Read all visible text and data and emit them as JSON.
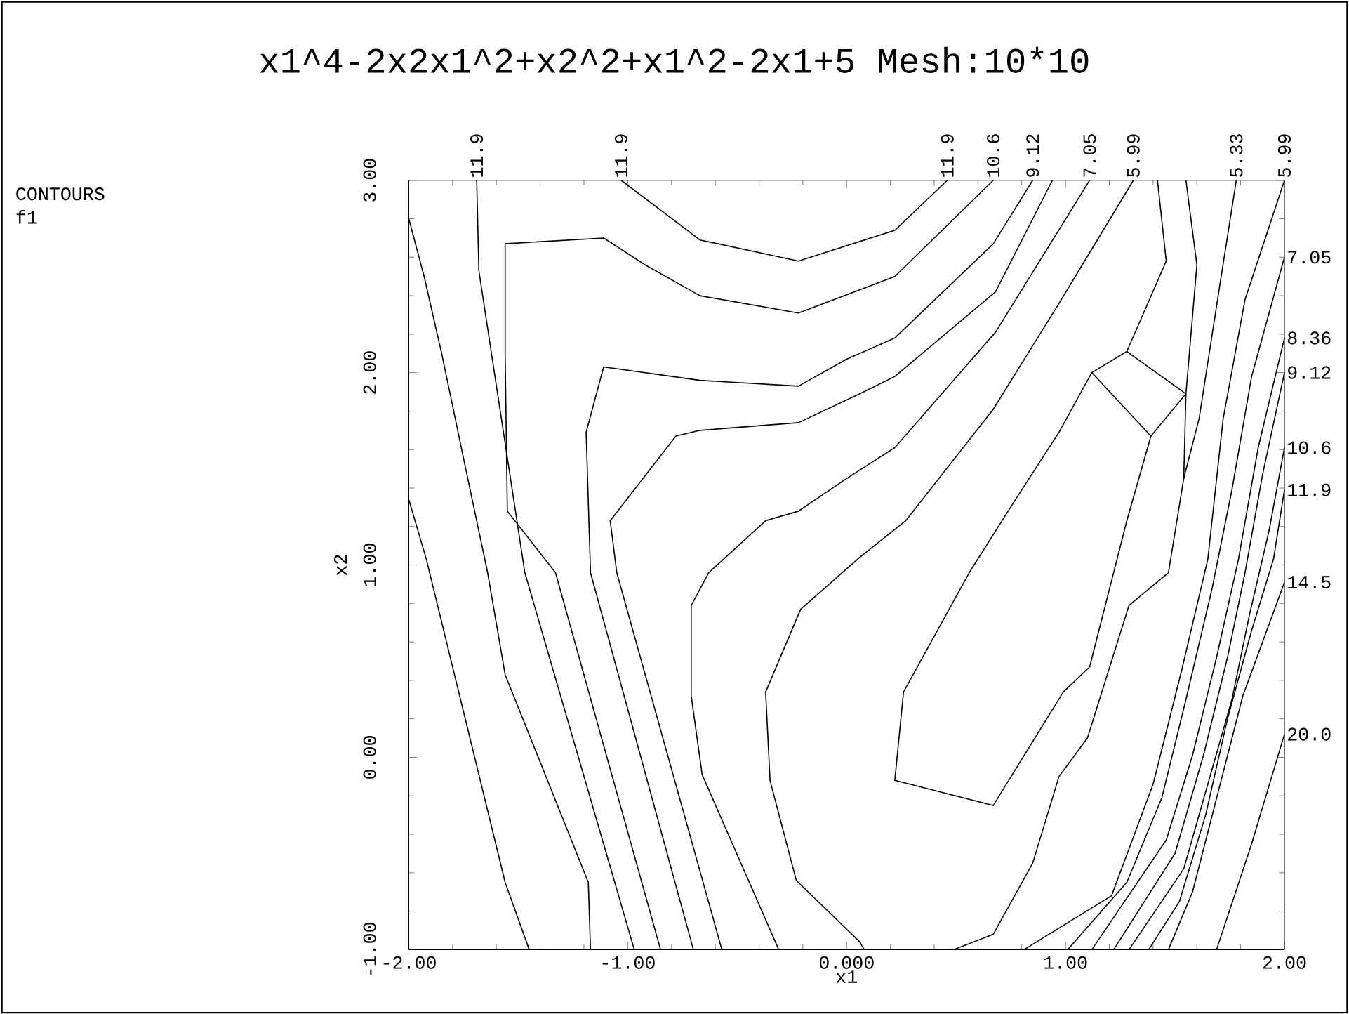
{
  "chart_data": {
    "type": "line",
    "title": "x1^4-2x2x1^2+x2^2+x1^2-2x1+5 Mesh:10*10",
    "xlabel": "x1",
    "ylabel": "x2",
    "color": "#000000",
    "xlim": [
      -2,
      2
    ],
    "ylim": [
      -1,
      3
    ],
    "xticks": [
      {
        "value": -2,
        "label": "-2.00"
      },
      {
        "value": -1,
        "label": "-1.00"
      },
      {
        "value": 0,
        "label": "0.000"
      },
      {
        "value": 1,
        "label": "1.00"
      },
      {
        "value": 2,
        "label": "2.00"
      }
    ],
    "yticks": [
      {
        "value": -1,
        "label": "-1.00"
      },
      {
        "value": 0,
        "label": "0.00"
      },
      {
        "value": 1,
        "label": "1.00"
      },
      {
        "value": 2,
        "label": "2.00"
      },
      {
        "value": 3,
        "label": "3.00"
      }
    ],
    "series": [
      {
        "x": [
          -2,
          -1.92,
          -1.56,
          -1.45
        ],
        "values": [
          1.34,
          1.03,
          -0.65,
          -1
        ]
      },
      {
        "x": [
          -2,
          -1.93,
          -1.85,
          -1.74,
          -1.64,
          -1.56,
          -1.18,
          -1.17
        ],
        "values": [
          2.8,
          2.5,
          2.1,
          1.5,
          0.96,
          0.43,
          -0.65,
          -1
        ]
      },
      {
        "x": [
          -1.69,
          -1.68,
          -1.47,
          -0.97
        ],
        "values": [
          3,
          2.53,
          0.96,
          -1
        ]
      },
      {
        "x": [
          -1.03,
          -0.67,
          -0.22,
          0.22,
          0.46
        ],
        "values": [
          3,
          2.69,
          2.58,
          2.74,
          3
        ]
      },
      {
        "x": [
          0.67,
          0.22,
          -0.22,
          -0.67,
          -0.92,
          -1.11,
          -1.56,
          -1.56,
          -1.55,
          -1.33,
          -0.85
        ],
        "values": [
          3,
          2.5,
          2.31,
          2.4,
          2.56,
          2.7,
          2.67,
          2.1,
          1.28,
          0.96,
          -1
        ]
      },
      {
        "x": [
          0.85,
          0.67,
          0.22,
          0.0,
          -0.22,
          -0.67,
          -1.11,
          -1.19,
          -1.17,
          -0.7
        ],
        "values": [
          3,
          2.67,
          2.18,
          2.07,
          1.93,
          1.96,
          2.03,
          1.69,
          0.96,
          -1
        ]
      },
      {
        "x": [
          0.94,
          0.68,
          0.22,
          0.06,
          -0.22,
          -0.67,
          -0.78,
          -1.08,
          -1.05,
          -0.57
        ],
        "values": [
          3,
          2.42,
          1.98,
          1.89,
          1.74,
          1.7,
          1.67,
          1.23,
          0.96,
          -1
        ]
      },
      {
        "x": [
          1.11,
          0.68,
          0.22,
          0.0,
          -0.22,
          -0.37,
          -0.63,
          -0.71,
          -0.71,
          -0.66,
          -0.31
        ],
        "values": [
          3,
          2.21,
          1.61,
          1.45,
          1.28,
          1.23,
          0.96,
          0.79,
          0.32,
          -0.09,
          -1
        ]
      },
      {
        "x": [
          0.08,
          0.06,
          -0.23,
          -0.35,
          -0.37,
          -0.21,
          0.06,
          0.27,
          0.67,
          0.97,
          1.31
        ],
        "values": [
          -1,
          -0.96,
          -0.64,
          -0.12,
          0.34,
          0.77,
          1.04,
          1.23,
          1.81,
          2.36,
          3
        ]
      },
      {
        "x": [
          1.12,
          0.97,
          0.76,
          0.56,
          0.26,
          0.22,
          0.67,
          0.99,
          1.11,
          1.28,
          1.39
        ],
        "values": [
          2.0,
          1.69,
          1.32,
          0.96,
          0.34,
          -0.12,
          -0.25,
          0.34,
          0.47,
          1.23,
          1.67
        ]
      },
      {
        "x": [
          1.42,
          1.46,
          1.28,
          1.55,
          1.39,
          1.12,
          1.28
        ],
        "values": [
          3,
          2.58,
          2.11,
          1.89,
          1.67,
          2.0,
          2.11
        ]
      },
      {
        "x": [
          1.55,
          1.6,
          1.55,
          1.54,
          1.47,
          1.29,
          1.1,
          0.97,
          0.85,
          0.67,
          0.49
        ],
        "values": [
          3,
          2.56,
          1.89,
          1.45,
          0.96,
          0.79,
          0.1,
          -0.1,
          -0.55,
          -0.92,
          -1
        ]
      },
      {
        "x": [
          1.78,
          1.7,
          1.61,
          1.54
        ],
        "values": [
          3,
          2.42,
          1.76,
          1.45
        ]
      },
      {
        "x": [
          2,
          1.82,
          1.72,
          1.65,
          1.53,
          1.4,
          1.21,
          0.81
        ],
        "values": [
          3,
          2.38,
          1.76,
          1.03,
          0.45,
          -0.14,
          -0.72,
          -1
        ]
      },
      {
        "x": [
          2,
          1.85,
          1.76,
          1.67,
          1.55,
          1.44,
          1.28,
          1.01
        ],
        "values": [
          2.6,
          1.98,
          1.39,
          0.88,
          0.3,
          -0.21,
          -0.65,
          -1
        ]
      },
      {
        "x": [
          2,
          1.88,
          1.79,
          1.69,
          1.58,
          1.46,
          1.12
        ],
        "values": [
          2.18,
          1.61,
          1.03,
          0.52,
          0.01,
          -0.43,
          -1
        ]
      },
      {
        "x": [
          2,
          1.9,
          1.82,
          1.74,
          1.63,
          1.5,
          1.22
        ],
        "values": [
          2.0,
          1.47,
          0.96,
          0.52,
          0.01,
          -0.5,
          -1
        ]
      },
      {
        "x": [
          2,
          1.93,
          1.84,
          1.76,
          1.65,
          1.54,
          1.29
        ],
        "values": [
          1.61,
          1.18,
          0.74,
          0.3,
          -0.14,
          -0.58,
          -1
        ]
      },
      {
        "x": [
          2,
          1.95,
          1.85,
          1.74,
          1.64,
          1.52,
          1.38
        ],
        "values": [
          1.39,
          1.03,
          0.66,
          0.2,
          -0.3,
          -0.75,
          -1
        ]
      },
      {
        "x": [
          2,
          1.81,
          1.58,
          1.47
        ],
        "values": [
          0.91,
          0.32,
          -0.7,
          -1
        ]
      },
      {
        "x": [
          2,
          1.85,
          1.69
        ],
        "values": [
          0.12,
          -0.45,
          -1
        ]
      }
    ],
    "annotations": [
      "CONTOURS",
      "f1",
      {
        "text": "11.9",
        "x": -1.69,
        "y": 3
      },
      {
        "text": "11.9",
        "x": -1.03,
        "y": 3
      },
      {
        "text": "11.9",
        "x": 0.46,
        "y": 3
      },
      {
        "text": "10.6",
        "x": 0.67,
        "y": 3
      },
      {
        "text": "9.12",
        "x": 0.85,
        "y": 3
      },
      {
        "text": "7.05",
        "x": 1.11,
        "y": 3
      },
      {
        "text": "5.99",
        "x": 1.31,
        "y": 3
      },
      {
        "text": "5.33",
        "x": 1.78,
        "y": 3
      },
      {
        "text": "5.99",
        "x": 2,
        "y": 3
      },
      {
        "text": "7.05",
        "x": 2,
        "y": 2.6
      },
      {
        "text": "8.36",
        "x": 2,
        "y": 2.18
      },
      {
        "text": "9.12",
        "x": 2,
        "y": 2.0
      },
      {
        "text": "10.6",
        "x": 2,
        "y": 1.61
      },
      {
        "text": "11.9",
        "x": 2,
        "y": 1.39
      },
      {
        "text": "14.5",
        "x": 2,
        "y": 0.91
      },
      {
        "text": "20.0",
        "x": 2,
        "y": 0.12
      }
    ]
  }
}
